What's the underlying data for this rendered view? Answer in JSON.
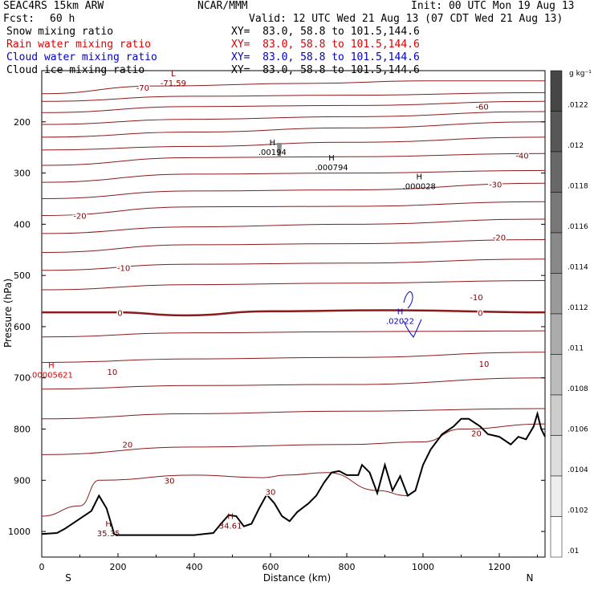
{
  "header": {
    "title": "SEAC4RS 15km ARW",
    "fcst_label": "Fcst:",
    "fcst_value": "60 h",
    "center": "NCAR/MMM",
    "init": "Init: 00 UTC Mon 19 Aug 13",
    "valid": "Valid: 12 UTC Wed 21 Aug 13 (07 CDT Wed 21 Aug 13)",
    "fields": [
      {
        "label": "Snow mixing ratio",
        "xy": "XY=  83.0, 58.8 to 101.5,144.6",
        "color": "#000000"
      },
      {
        "label": "Rain water mixing ratio",
        "xy": "XY=  83.0, 58.8 to 101.5,144.6",
        "color": "#e00000"
      },
      {
        "label": "Cloud water mixing ratio",
        "xy": "XY=  83.0, 58.8 to 101.5,144.6",
        "color": "#0000d0"
      },
      {
        "label": "Cloud ice mixing ratio",
        "xy": "XY=  83.0, 58.8 to 101.5,144.6",
        "color": "#000000"
      }
    ]
  },
  "chart_data": {
    "type": "contour-cross-section",
    "xlabel": "Distance (km)",
    "ylabel": "Pressure (hPa)",
    "xlim": [
      0,
      1320
    ],
    "ylim": [
      1050,
      100
    ],
    "x_ticks": [
      "0",
      "200",
      "400",
      "600",
      "800",
      "1000",
      "1200"
    ],
    "y_ticks": [
      "200",
      "300",
      "400",
      "500",
      "600",
      "700",
      "800",
      "900",
      "1000"
    ],
    "end_labels": {
      "left": "S",
      "right": "N"
    },
    "colorbar": {
      "unit": "g kg⁻¹",
      "ticks": [
        ".0122",
        ".012",
        ".0118",
        ".0116",
        ".0114",
        ".0112",
        ".011",
        ".0108",
        ".0106",
        ".0104",
        ".0102",
        ".01"
      ]
    },
    "isotherm_labels": [
      {
        "text": "-70",
        "x": 265,
        "y": 133,
        "color": "#800000"
      },
      {
        "text": "-60",
        "x": 1155,
        "y": 170,
        "color": "#800000"
      },
      {
        "text": "-40",
        "x": 1260,
        "y": 265,
        "color": "#800000"
      },
      {
        "text": "-30",
        "x": 1190,
        "y": 322,
        "color": "#800000"
      },
      {
        "text": "-20",
        "x": 100,
        "y": 383,
        "color": "#800000"
      },
      {
        "text": "-20",
        "x": 1200,
        "y": 425,
        "color": "#800000"
      },
      {
        "text": "-10",
        "x": 215,
        "y": 485,
        "color": "#800000"
      },
      {
        "text": "-10",
        "x": 1140,
        "y": 542,
        "color": "#800000"
      },
      {
        "text": "0",
        "x": 205,
        "y": 573,
        "color": "#800000"
      },
      {
        "text": "0",
        "x": 1150,
        "y": 573,
        "color": "#800000"
      },
      {
        "text": "10",
        "x": 185,
        "y": 688,
        "color": "#800000"
      },
      {
        "text": "10",
        "x": 1160,
        "y": 672,
        "color": "#800000"
      },
      {
        "text": "20",
        "x": 225,
        "y": 830,
        "color": "#800000"
      },
      {
        "text": "20",
        "x": 1140,
        "y": 808,
        "color": "#800000"
      },
      {
        "text": "30",
        "x": 335,
        "y": 900,
        "color": "#800000"
      },
      {
        "text": "30",
        "x": 600,
        "y": 922,
        "color": "#800000"
      }
    ],
    "extrema": [
      {
        "mark": "L",
        "text": "-71.59",
        "x": 345,
        "y": 120,
        "color": "#800000"
      },
      {
        "mark": "H",
        "text": ".00194",
        "x": 605,
        "y": 255,
        "color": "#000000"
      },
      {
        "mark": "H",
        "text": ".000794",
        "x": 760,
        "y": 285,
        "color": "#000000"
      },
      {
        "mark": "H",
        "text": ".000028",
        "x": 990,
        "y": 322,
        "color": "#000000"
      },
      {
        "mark": "H",
        "text": ".02022",
        "x": 940,
        "y": 585,
        "color": "#0000d0"
      },
      {
        "mark": "H",
        "text": ".00005621",
        "x": 25,
        "y": 690,
        "color": "#e00000"
      },
      {
        "mark": "H",
        "text": "35.35",
        "x": 175,
        "y": 1000,
        "color": "#800000"
      },
      {
        "mark": "H",
        "text": "34.61",
        "x": 495,
        "y": 985,
        "color": "#800000"
      }
    ],
    "terrain": [
      [
        0,
        1005
      ],
      [
        40,
        1003
      ],
      [
        60,
        995
      ],
      [
        100,
        975
      ],
      [
        130,
        960
      ],
      [
        150,
        930
      ],
      [
        170,
        955
      ],
      [
        190,
        1005
      ],
      [
        200,
        1007
      ],
      [
        250,
        1007
      ],
      [
        300,
        1007
      ],
      [
        350,
        1007
      ],
      [
        400,
        1007
      ],
      [
        450,
        1003
      ],
      [
        470,
        985
      ],
      [
        490,
        968
      ],
      [
        510,
        970
      ],
      [
        530,
        990
      ],
      [
        550,
        985
      ],
      [
        570,
        955
      ],
      [
        590,
        928
      ],
      [
        610,
        945
      ],
      [
        630,
        970
      ],
      [
        650,
        980
      ],
      [
        670,
        962
      ],
      [
        700,
        945
      ],
      [
        720,
        930
      ],
      [
        740,
        905
      ],
      [
        760,
        885
      ],
      [
        780,
        882
      ],
      [
        800,
        890
      ],
      [
        830,
        890
      ],
      [
        840,
        870
      ],
      [
        860,
        885
      ],
      [
        880,
        925
      ],
      [
        900,
        870
      ],
      [
        920,
        920
      ],
      [
        940,
        892
      ],
      [
        960,
        930
      ],
      [
        980,
        920
      ],
      [
        1000,
        870
      ],
      [
        1020,
        840
      ],
      [
        1050,
        810
      ],
      [
        1080,
        795
      ],
      [
        1100,
        780
      ],
      [
        1120,
        780
      ],
      [
        1150,
        795
      ],
      [
        1170,
        810
      ],
      [
        1200,
        815
      ],
      [
        1230,
        830
      ],
      [
        1250,
        815
      ],
      [
        1270,
        820
      ],
      [
        1290,
        795
      ],
      [
        1300,
        770
      ],
      [
        1310,
        800
      ],
      [
        1320,
        815
      ]
    ],
    "isotherms": [
      {
        "value": -70,
        "pts": [
          [
            0,
            145
          ],
          [
            300,
            130
          ],
          [
            700,
            125
          ],
          [
            1000,
            120
          ],
          [
            1320,
            120
          ]
        ]
      },
      {
        "value": -65,
        "pts": [
          [
            0,
            160
          ],
          [
            400,
            150
          ],
          [
            800,
            148
          ],
          [
            1320,
            143
          ]
        ]
      },
      {
        "value": -60,
        "pts": [
          [
            0,
            182
          ],
          [
            400,
            170
          ],
          [
            800,
            168
          ],
          [
            1320,
            160
          ]
        ]
      },
      {
        "value": -55,
        "pts": [
          [
            0,
            205
          ],
          [
            400,
            195
          ],
          [
            800,
            190
          ],
          [
            1320,
            180
          ]
        ]
      },
      {
        "value": -50,
        "pts": [
          [
            0,
            230
          ],
          [
            400,
            220
          ],
          [
            800,
            212
          ],
          [
            1320,
            200
          ]
        ]
      },
      {
        "value": -45,
        "pts": [
          [
            0,
            255
          ],
          [
            400,
            248
          ],
          [
            800,
            240
          ],
          [
            1320,
            230
          ]
        ]
      },
      {
        "value": -40,
        "pts": [
          [
            0,
            285
          ],
          [
            400,
            270
          ],
          [
            800,
            268
          ],
          [
            1320,
            262
          ]
        ]
      },
      {
        "value": -35,
        "pts": [
          [
            0,
            318
          ],
          [
            400,
            302
          ],
          [
            800,
            300
          ],
          [
            1320,
            295
          ]
        ]
      },
      {
        "value": -30,
        "pts": [
          [
            0,
            350
          ],
          [
            400,
            335
          ],
          [
            800,
            333
          ],
          [
            1320,
            320
          ]
        ]
      },
      {
        "value": -25,
        "pts": [
          [
            0,
            383
          ],
          [
            400,
            366
          ],
          [
            800,
            365
          ],
          [
            1320,
            356
          ]
        ]
      },
      {
        "value": -20,
        "pts": [
          [
            0,
            418
          ],
          [
            400,
            405
          ],
          [
            800,
            400
          ],
          [
            1320,
            390
          ]
        ]
      },
      {
        "value": -15,
        "pts": [
          [
            0,
            455
          ],
          [
            400,
            440
          ],
          [
            800,
            438
          ],
          [
            1320,
            430
          ]
        ]
      },
      {
        "value": -10,
        "pts": [
          [
            0,
            490
          ],
          [
            400,
            478
          ],
          [
            800,
            476
          ],
          [
            1320,
            468
          ]
        ]
      },
      {
        "value": -5,
        "pts": [
          [
            0,
            528
          ],
          [
            400,
            518
          ],
          [
            800,
            515
          ],
          [
            1320,
            510
          ]
        ]
      },
      {
        "value": 0,
        "pts": [
          [
            0,
            572
          ],
          [
            200,
            572
          ],
          [
            370,
            578
          ],
          [
            600,
            570
          ],
          [
            900,
            568
          ],
          [
            1320,
            572
          ]
        ]
      },
      {
        "value": 5,
        "pts": [
          [
            0,
            620
          ],
          [
            400,
            612
          ],
          [
            800,
            610
          ],
          [
            1320,
            608
          ]
        ]
      },
      {
        "value": 10,
        "pts": [
          [
            0,
            670
          ],
          [
            400,
            663
          ],
          [
            800,
            660
          ],
          [
            1320,
            650
          ]
        ]
      },
      {
        "value": 15,
        "pts": [
          [
            0,
            722
          ],
          [
            400,
            715
          ],
          [
            800,
            713
          ],
          [
            1320,
            700
          ]
        ]
      },
      {
        "value": 20,
        "pts": [
          [
            0,
            780
          ],
          [
            400,
            770
          ],
          [
            800,
            765
          ],
          [
            1320,
            760
          ]
        ]
      },
      {
        "value": 25,
        "pts": [
          [
            0,
            850
          ],
          [
            400,
            835
          ],
          [
            800,
            830
          ],
          [
            1000,
            825
          ],
          [
            1100,
            800
          ],
          [
            1320,
            790
          ]
        ]
      },
      {
        "value": 30,
        "pts": [
          [
            0,
            970
          ],
          [
            100,
            950
          ],
          [
            150,
            900
          ],
          [
            400,
            890
          ],
          [
            580,
            895
          ],
          [
            640,
            890
          ],
          [
            750,
            885
          ],
          [
            880,
            920
          ],
          [
            960,
            930
          ]
        ]
      }
    ]
  }
}
